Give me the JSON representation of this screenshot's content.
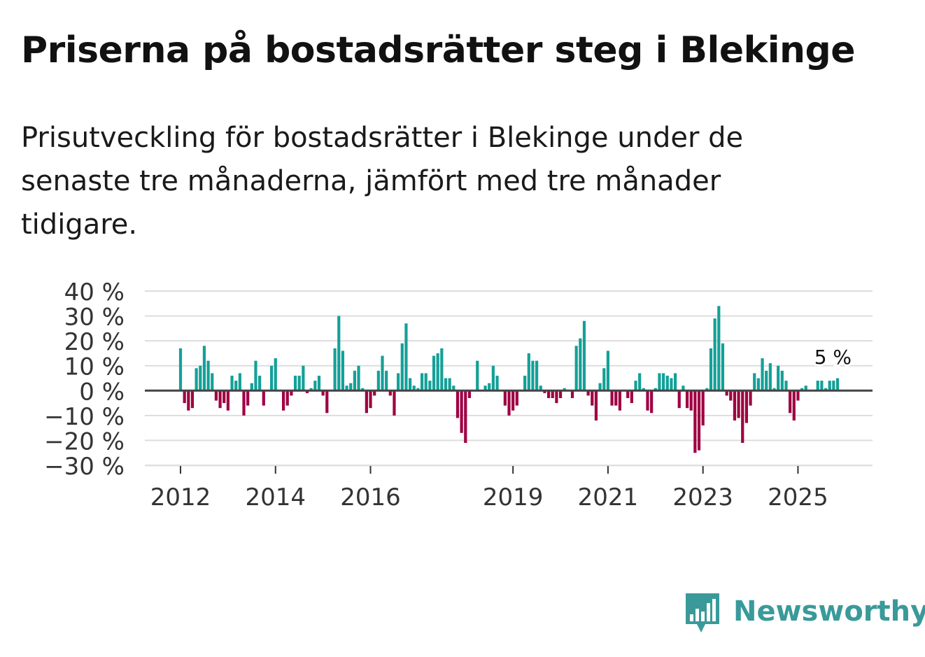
{
  "title": "Priserna på bostadsrätter steg i Blekinge",
  "subtitle": "Prisutveckling för bostadsrätter i Blekinge under de senaste tre månaderna, jämfört med tre månader tidigare.",
  "brand": "Newsworthy",
  "colors": {
    "positive": "#14a098",
    "negative": "#9e0142",
    "brand": "#3a9a9a",
    "zero_line": "#444444",
    "grid": "#dddddd"
  },
  "chart_data": {
    "type": "bar",
    "title": "Priserna på bostadsrätter steg i Blekinge",
    "ylabel": "",
    "xlabel": "",
    "ylim": [
      -30,
      40
    ],
    "y_ticks": [
      40,
      30,
      20,
      10,
      0,
      -10,
      -20,
      -30
    ],
    "y_tick_labels": [
      "40 %",
      "30 %",
      "20 %",
      "10 %",
      "0 %",
      "−10 %",
      "−20 %",
      "−30 %"
    ],
    "x_ticks": [
      {
        "label": "2012",
        "index": 0
      },
      {
        "label": "2014",
        "index": 24
      },
      {
        "label": "2016",
        "index": 48
      },
      {
        "label": "2019",
        "index": 84
      },
      {
        "label": "2021",
        "index": 108
      },
      {
        "label": "2023",
        "index": 132
      },
      {
        "label": "2025",
        "index": 156
      }
    ],
    "annotation": {
      "label": "5 %",
      "index": 165
    },
    "values": [
      17,
      -5,
      -8,
      -7,
      9,
      10,
      18,
      12,
      7,
      -4,
      -7,
      -5,
      -8,
      6,
      4,
      7,
      -10,
      -6,
      3,
      12,
      6,
      -6,
      0,
      10,
      13,
      0,
      -8,
      -6,
      -2,
      6,
      6,
      10,
      -1,
      1,
      4,
      6,
      -2,
      -9,
      0,
      17,
      30,
      16,
      2,
      3,
      8,
      10,
      1,
      -9,
      -7,
      -2,
      8,
      14,
      8,
      -2,
      -10,
      7,
      19,
      27,
      5,
      2,
      1,
      7,
      7,
      4,
      14,
      15,
      17,
      5,
      5,
      2,
      -11,
      -17,
      -21,
      -3,
      0,
      12,
      0,
      2,
      3,
      10,
      6,
      0,
      -6,
      -10,
      -8,
      -6,
      0,
      6,
      15,
      12,
      12,
      2,
      -1,
      -3,
      -3,
      -5,
      -3,
      1,
      0,
      -3,
      18,
      21,
      28,
      -2,
      -6,
      -12,
      3,
      9,
      16,
      -6,
      -6,
      -8,
      0,
      -3,
      -5,
      4,
      7,
      1,
      -8,
      -9,
      1,
      7,
      7,
      6,
      5,
      7,
      -7,
      2,
      -7,
      -8,
      -25,
      -24,
      -14,
      1,
      17,
      29,
      34,
      19,
      -2,
      -4,
      -12,
      -11,
      -21,
      -13,
      -6,
      7,
      5,
      13,
      8,
      11,
      1,
      10,
      8,
      4,
      -9,
      -12,
      -4,
      1,
      2,
      0,
      0,
      4,
      4,
      1,
      4,
      4,
      5
    ]
  }
}
